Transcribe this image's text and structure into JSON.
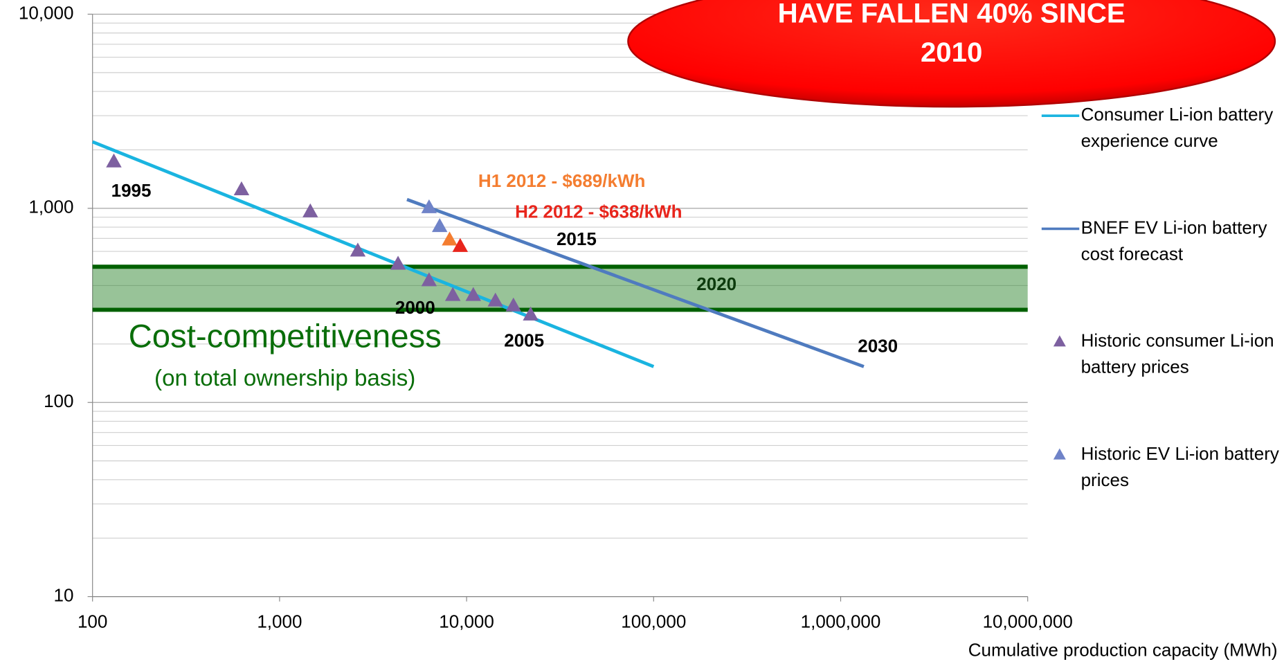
{
  "chart_data": {
    "type": "scatter",
    "log_x": true,
    "log_y": true,
    "grid": true,
    "minor_grid": true,
    "xlabel": "Cumulative production capacity (MWh)",
    "xlim": [
      100,
      10000000
    ],
    "xticks": [
      100,
      {
        "value": 1000,
        "label": "1,000"
      },
      {
        "value": 10000,
        "label": "10,000"
      },
      {
        "value": 100000,
        "label": "100,000"
      },
      {
        "value": 1000000,
        "label": "1,000,000"
      },
      {
        "value": 10000000,
        "label": "10,000,000"
      }
    ],
    "ylim": [
      10,
      10000
    ],
    "yticks": [
      10,
      100,
      {
        "value": 1000,
        "label": "1,000"
      },
      {
        "value": 10000,
        "label": "10,000"
      }
    ],
    "legend": "right",
    "series": [
      {
        "name": "Consumer Li-ion battery experience curve",
        "kind": "line",
        "color": "#1ab4e0",
        "x": [
          100,
          100000
        ],
        "values": [
          2200,
          153
        ]
      },
      {
        "name": "BNEF EV Li-ion battery cost forecast",
        "kind": "line",
        "color": "#4f7bbf",
        "x": [
          4800,
          1330000
        ],
        "values": [
          1110,
          153
        ]
      },
      {
        "name": "Historic consumer Li-ion battery prices",
        "kind": "marker",
        "color": "#7d60a0",
        "x": [
          130,
          626,
          1460,
          2620,
          4300,
          6300,
          8440,
          10860,
          14260,
          17800,
          22000
        ],
        "values": [
          1740,
          1250,
          962,
          604,
          517,
          425,
          357,
          357,
          334,
          315,
          283
        ]
      },
      {
        "name": "Historic EV Li-ion battery prices",
        "kind": "marker",
        "color": "#6f83c8",
        "x": [
          6300,
          7180
        ],
        "values": [
          1010,
          808
        ]
      }
    ],
    "highlighted_points": [
      {
        "x": 8110,
        "y": 689,
        "color": "#f47d30"
      },
      {
        "x": 9240,
        "y": 638,
        "color": "#e8251c"
      }
    ],
    "band": {
      "range": [
        300,
        500
      ],
      "label": "Cost-competitiveness",
      "sublabel": "(on total ownership basis)"
    },
    "annotations": [
      {
        "text": "1995",
        "x": 161,
        "y": 1214,
        "color": "#000000"
      },
      {
        "text": "2000",
        "x": 5310,
        "y": 303,
        "color": "#000000"
      },
      {
        "text": "2005",
        "x": 20300,
        "y": 205,
        "color": "#000000"
      },
      {
        "text": "2015",
        "x": 38700,
        "y": 685,
        "color": "#000000"
      },
      {
        "text": "2020",
        "x": 217000,
        "y": 401,
        "color": "#0d3b0d"
      },
      {
        "text": "2030",
        "x": 1580000,
        "y": 192,
        "color": "#000000"
      },
      {
        "text": "H1 2012 - $689/kWh",
        "x": 32300,
        "y": 1365,
        "color": "#f47d30"
      },
      {
        "text": "H2 2012 - $638/kWh",
        "x": 50800,
        "y": 944,
        "color": "#e8251c"
      }
    ],
    "callout": [
      "HAVE FALLEN 40% SINCE",
      "2010"
    ]
  }
}
